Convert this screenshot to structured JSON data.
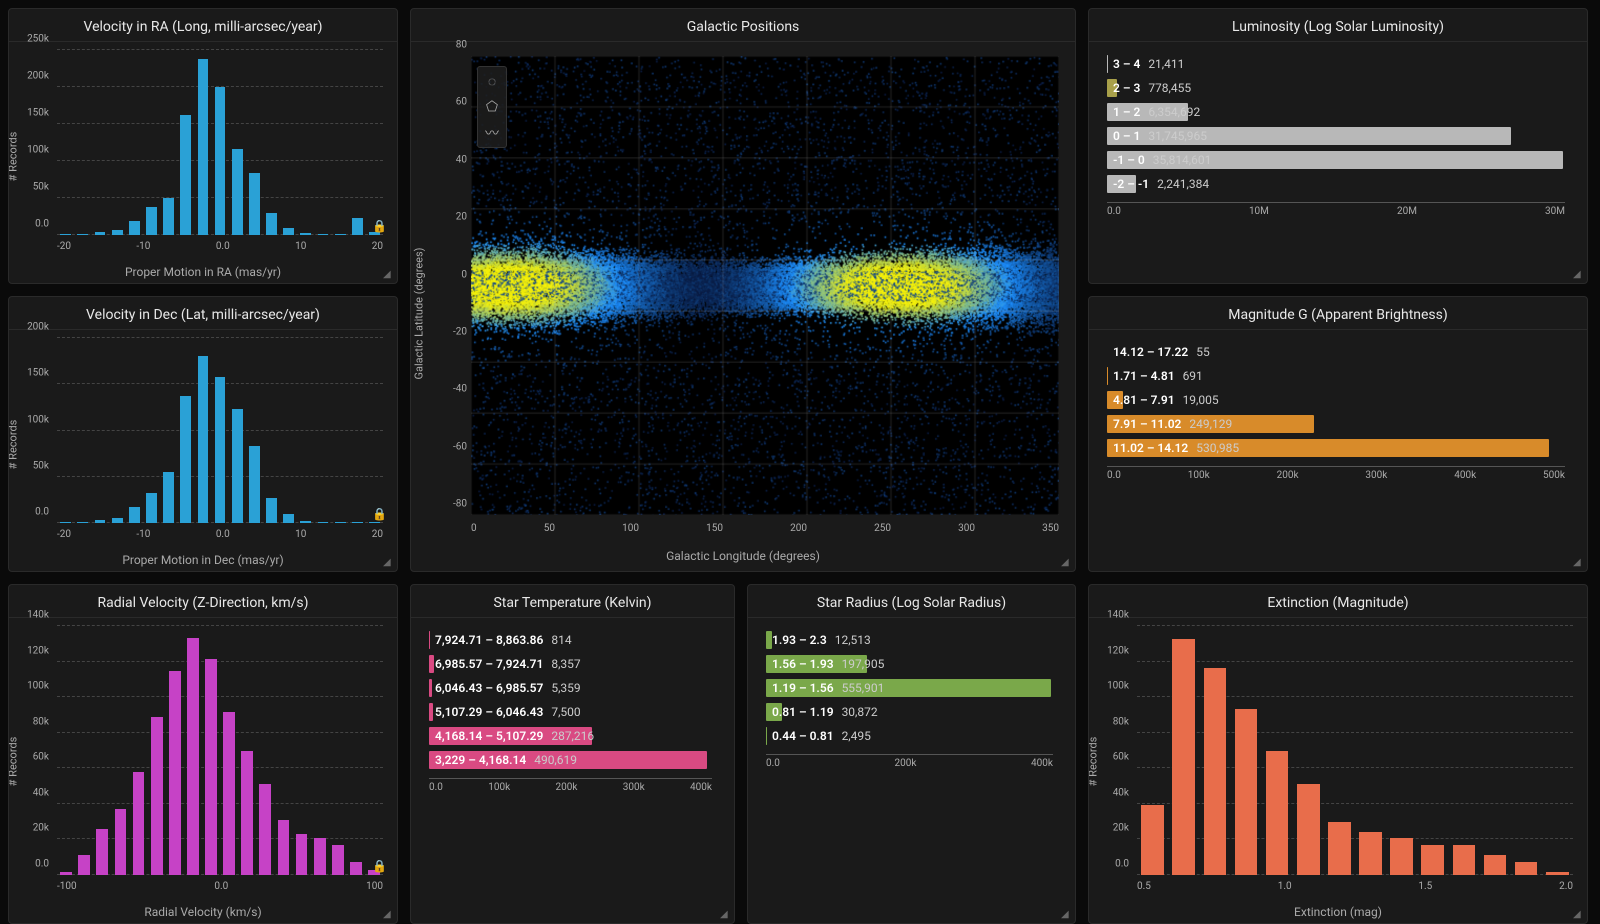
{
  "colors": {
    "panel_bg": "#1a1a1a",
    "page_bg": "#0a0a0a",
    "border": "#2a2a2a",
    "grid": "#444444",
    "text": "#d0d0d0",
    "axis_text": "#aaaaaa",
    "histo_blue": "#2aa1d6",
    "histo_magenta": "#c642c6",
    "histo_orange": "#e86d4b",
    "bar_gray": "#b8b8b8",
    "bar_amber": "#d88b2a",
    "bar_pink": "#d94a82",
    "bar_khaki": "#a8a04a",
    "bar_green": "#7aa84a",
    "scatter_low": "#0a1a40",
    "scatter_mid": "#1e90ff",
    "scatter_high": "#f5f10a"
  },
  "panels": {
    "ra": {
      "title": "Velocity in RA (Long, milli-arcsec/year)",
      "ylabel": "# Records",
      "xlabel": "Proper Motion in RA (mas/yr)",
      "yticks": [
        "0.0",
        "50k",
        "100k",
        "150k",
        "200k",
        "250k"
      ],
      "ymax": 300,
      "xticks": [
        "-20",
        "-10",
        "0.0",
        "10",
        "20"
      ],
      "color": "#2aa1d6",
      "values": [
        1,
        2,
        5,
        8,
        22,
        45,
        60,
        195,
        285,
        240,
        140,
        100,
        35,
        12,
        4,
        2,
        1,
        28,
        5
      ]
    },
    "dec": {
      "title": "Velocity in Dec (Lat, milli-arcsec/year)",
      "ylabel": "# Records",
      "xlabel": "Proper Motion in Dec (mas/yr)",
      "yticks": [
        "0.0",
        "50k",
        "100k",
        "150k",
        "200k"
      ],
      "ymax": 260,
      "xticks": [
        "-20",
        "-10",
        "0.0",
        "10",
        "20"
      ],
      "color": "#2aa1d6",
      "values": [
        1,
        2,
        4,
        7,
        22,
        42,
        72,
        178,
        235,
        205,
        160,
        108,
        35,
        12,
        3,
        2,
        1,
        1,
        1
      ]
    },
    "gal": {
      "title": "Galactic Positions",
      "ylabel": "Galactic Latitude (degrees)",
      "xlabel": "Galactic Longitude (degrees)",
      "yticks": [
        "-80",
        "-60",
        "-40",
        "-20",
        "0",
        "20",
        "40",
        "60",
        "80"
      ],
      "xticks": [
        "0",
        "50",
        "100",
        "150",
        "200",
        "250",
        "300",
        "350"
      ],
      "xlim": [
        0,
        360
      ],
      "ylim": [
        -90,
        90
      ],
      "tools": [
        "circle-select",
        "polygon-select",
        "lasso-select"
      ]
    },
    "lum": {
      "title": "Luminosity (Log Solar Luminosity)",
      "color": "#b8b8b8",
      "highlight_idx": 1,
      "highlight_color": "#a8a04a",
      "max": 36000000,
      "rows": [
        {
          "range": "3 – 4",
          "value": 21411,
          "label": "21,411"
        },
        {
          "range": "2 – 3",
          "value": 778455,
          "label": "778,455"
        },
        {
          "range": "1 – 2",
          "value": 6354692,
          "label": "6,354,692"
        },
        {
          "range": "0 – 1",
          "value": 31745965,
          "label": "31,745,965"
        },
        {
          "range": "-1 – 0",
          "value": 35814601,
          "label": "35,814,601"
        },
        {
          "range": "-2 – -1",
          "value": 2241384,
          "label": "2,241,384"
        }
      ],
      "xticks": [
        "0.0",
        "10M",
        "20M",
        "30M"
      ]
    },
    "mag": {
      "title": "Magnitude G (Apparent Brightness)",
      "color": "#d88b2a",
      "max": 550000,
      "rows": [
        {
          "range": "14.12 – 17.22",
          "value": 55,
          "label": "55"
        },
        {
          "range": "1.71 – 4.81",
          "value": 691,
          "label": "691"
        },
        {
          "range": "4.81 – 7.91",
          "value": 19005,
          "label": "19,005"
        },
        {
          "range": "7.91 – 11.02",
          "value": 249129,
          "label": "249,129"
        },
        {
          "range": "11.02 – 14.12",
          "value": 530985,
          "label": "530,985"
        }
      ],
      "xticks": [
        "0.0",
        "100k",
        "200k",
        "300k",
        "400k",
        "500k"
      ]
    },
    "radv": {
      "title": "Radial Velocity (Z-Direction, km/s)",
      "ylabel": "# Records",
      "xlabel": "Radial Velocity (km/s)",
      "yticks": [
        "0.0",
        "20k",
        "40k",
        "60k",
        "80k",
        "100k",
        "120k",
        "140k"
      ],
      "ymax": 150,
      "xticks": [
        "-100",
        "0.0",
        "100"
      ],
      "color": "#c642c6",
      "values": [
        2,
        12,
        28,
        40,
        62,
        95,
        123,
        143,
        130,
        98,
        75,
        55,
        33,
        25,
        22,
        18,
        8,
        3
      ]
    },
    "temp": {
      "title": "Star Temperature (Kelvin)",
      "color": "#d94a82",
      "max": 500000,
      "rows": [
        {
          "range": "7,924.71 – 8,863.86",
          "value": 814,
          "label": "814"
        },
        {
          "range": "6,985.57 – 7,924.71",
          "value": 8357,
          "label": "8,357"
        },
        {
          "range": "6,046.43 – 6,985.57",
          "value": 5359,
          "label": "5,359"
        },
        {
          "range": "5,107.29 – 6,046.43",
          "value": 7500,
          "label": "7,500"
        },
        {
          "range": "4,168.14 – 5,107.29",
          "value": 287216,
          "label": "287,216"
        },
        {
          "range": "3,229 – 4,168.14",
          "value": 490619,
          "label": "490,619"
        }
      ],
      "xticks": [
        "0.0",
        "100k",
        "200k",
        "300k",
        "400k"
      ]
    },
    "radius": {
      "title": "Star Radius (Log Solar Radius)",
      "color": "#7aa84a",
      "max": 560000,
      "rows": [
        {
          "range": "1.93 – 2.3",
          "value": 12513,
          "label": "12,513"
        },
        {
          "range": "1.56 – 1.93",
          "value": 197905,
          "label": "197,905"
        },
        {
          "range": "1.19 – 1.56",
          "value": 555901,
          "label": "555,901"
        },
        {
          "range": "0.81 – 1.19",
          "value": 30872,
          "label": "30,872"
        },
        {
          "range": "0.44 – 0.81",
          "value": 2495,
          "label": "2,495"
        }
      ],
      "xticks": [
        "0.0",
        "200k",
        "400k"
      ]
    },
    "ext": {
      "title": "Extinction (Magnitude)",
      "ylabel": "# Records",
      "xlabel": "Extinction (mag)",
      "yticks": [
        "0.0",
        "20k",
        "40k",
        "60k",
        "80k",
        "100k",
        "120k",
        "140k"
      ],
      "ymax": 150,
      "xticks": [
        "0.5",
        "1.0",
        "1.5",
        "2.0"
      ],
      "color": "#e86d4b",
      "values": [
        42,
        142,
        125,
        100,
        75,
        55,
        32,
        26,
        22,
        18,
        18,
        12,
        8,
        2
      ]
    }
  }
}
